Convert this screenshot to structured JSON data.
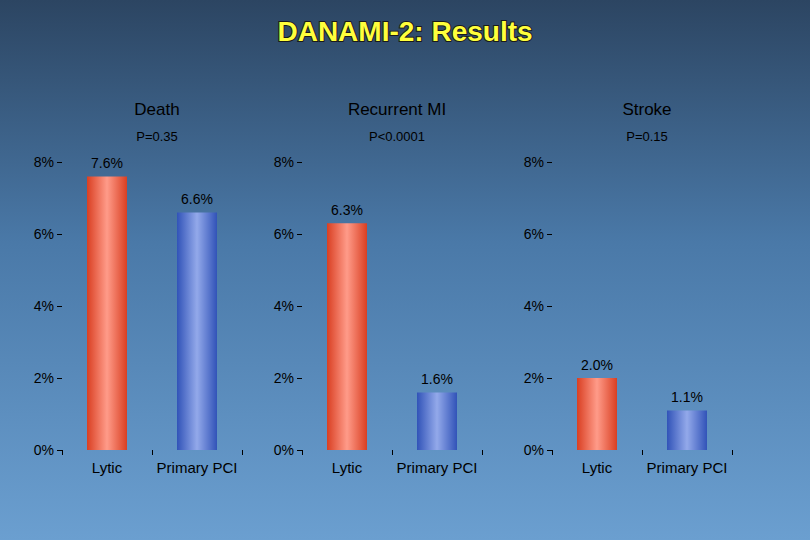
{
  "title": "DANAMI-2: Results",
  "chart_data": [
    {
      "type": "bar",
      "title": "Death",
      "subtitle": "P=0.35",
      "categories": [
        "Lytic",
        "Primary PCI"
      ],
      "values": [
        7.6,
        6.6
      ],
      "value_labels": [
        "7.6%",
        "6.6%"
      ],
      "colors": [
        "#ff4a28",
        "#3a62d8"
      ],
      "ylim": [
        0,
        8
      ],
      "yticks": [
        {
          "value": 0,
          "label": "0%"
        },
        {
          "value": 2,
          "label": "2%"
        },
        {
          "value": 4,
          "label": "4%"
        },
        {
          "value": 6,
          "label": "6%"
        },
        {
          "value": 8,
          "label": "8%"
        }
      ],
      "grid": false,
      "data_labels": true
    },
    {
      "type": "bar",
      "title": "Recurrent MI",
      "subtitle": "P<0.0001",
      "categories": [
        "Lytic",
        "Primary PCI"
      ],
      "values": [
        6.3,
        1.6
      ],
      "value_labels": [
        "6.3%",
        "1.6%"
      ],
      "colors": [
        "#ff4a28",
        "#3a62d8"
      ],
      "ylim": [
        0,
        8
      ],
      "yticks": [
        {
          "value": 0,
          "label": "0%"
        },
        {
          "value": 2,
          "label": "2%"
        },
        {
          "value": 4,
          "label": "4%"
        },
        {
          "value": 6,
          "label": "6%"
        },
        {
          "value": 8,
          "label": "8%"
        }
      ],
      "grid": false,
      "data_labels": true
    },
    {
      "type": "bar",
      "title": "Stroke",
      "subtitle": "P=0.15",
      "categories": [
        "Lytic",
        "Primary PCI"
      ],
      "values": [
        2.0,
        1.1
      ],
      "value_labels": [
        "2.0%",
        "1.1%"
      ],
      "colors": [
        "#ff4a28",
        "#3a62d8"
      ],
      "ylim": [
        0,
        8
      ],
      "yticks": [
        {
          "value": 0,
          "label": "0%"
        },
        {
          "value": 2,
          "label": "2%"
        },
        {
          "value": 4,
          "label": "4%"
        },
        {
          "value": 6,
          "label": "6%"
        },
        {
          "value": 8,
          "label": "8%"
        }
      ],
      "grid": false,
      "data_labels": true
    }
  ]
}
